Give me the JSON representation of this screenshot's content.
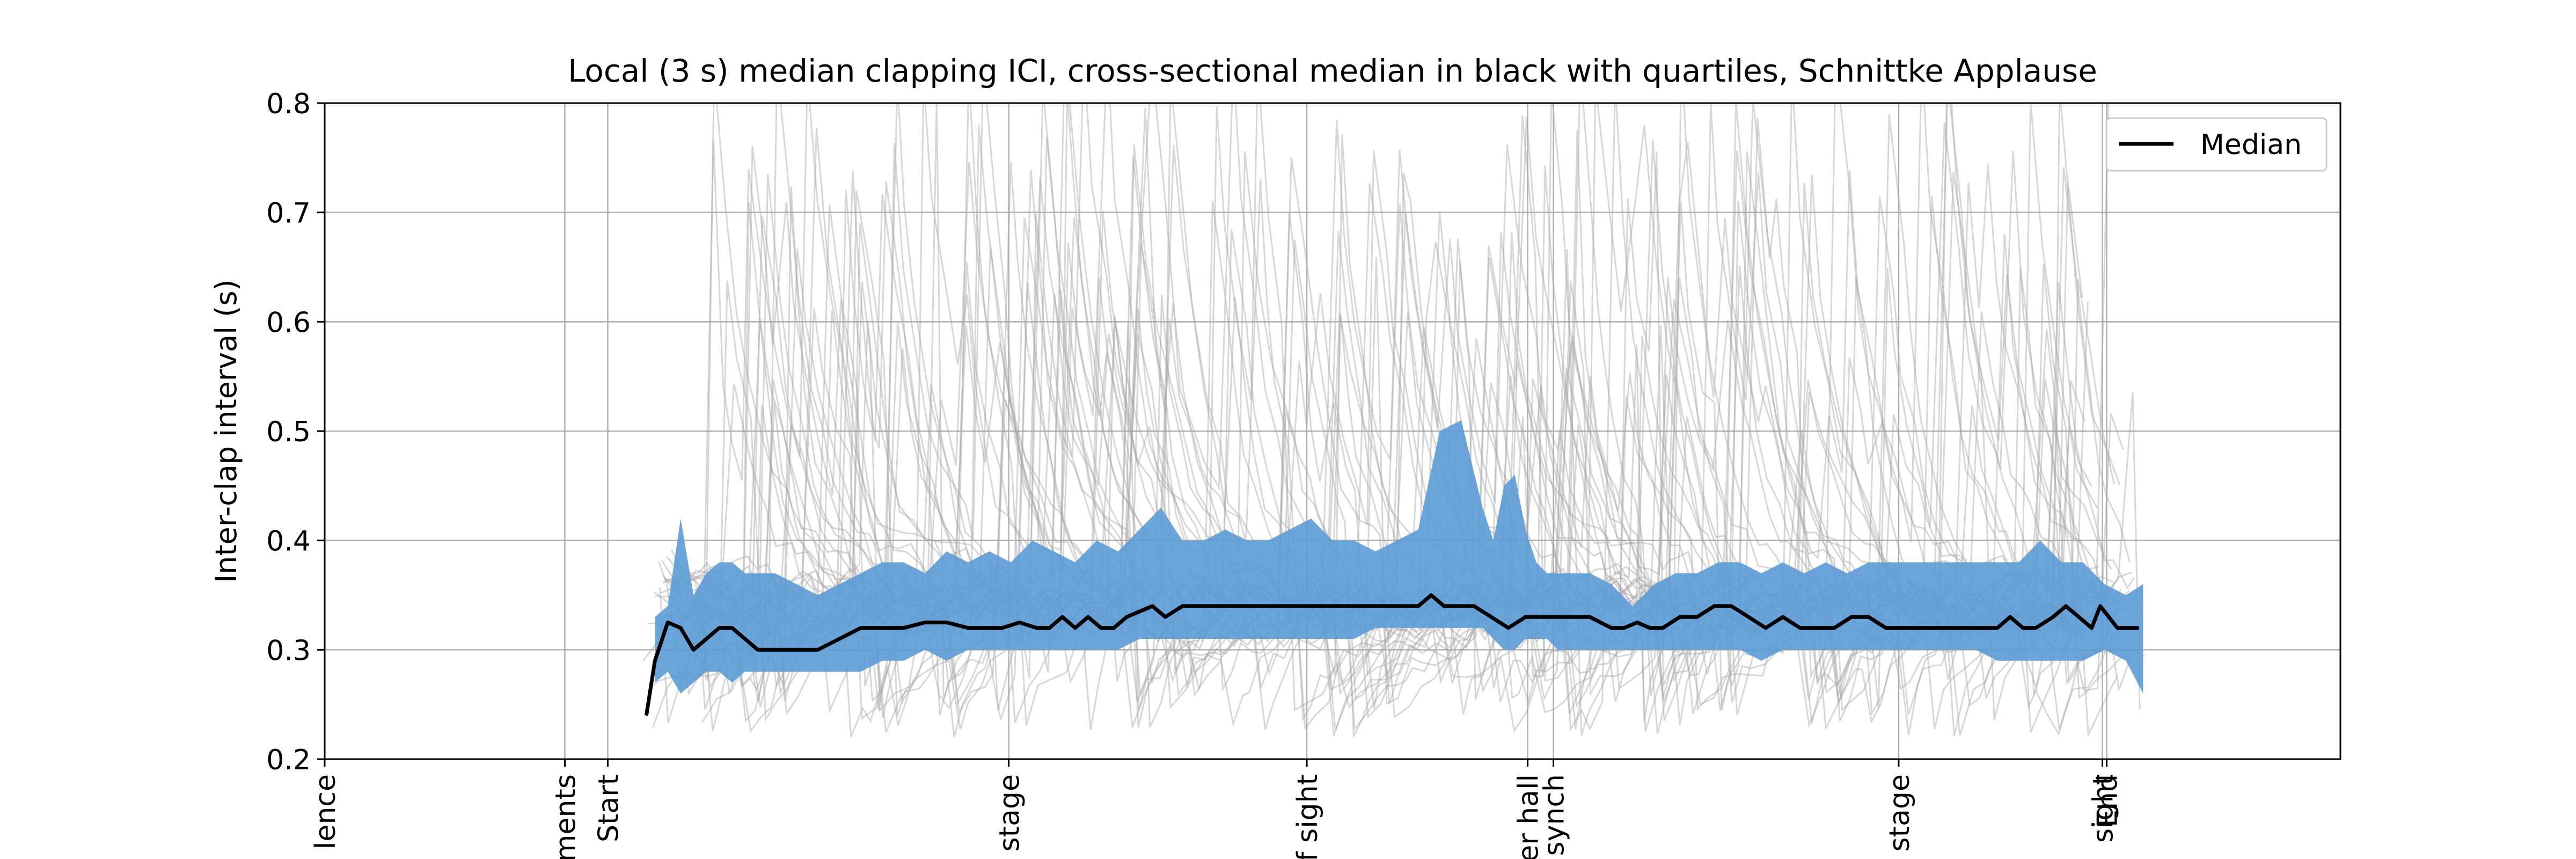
{
  "chart_data": {
    "type": "line",
    "title": "Local (3 s) median clapping ICI, cross-sectional median in black with quartiles, Schnittke Applause",
    "xlabel": "",
    "ylabel": "Inter-clap interval (s)",
    "xlim": [
      0,
      940
    ],
    "ylim": [
      0.2,
      0.8
    ],
    "y_ticks": [
      0.2,
      0.3,
      0.4,
      0.5,
      0.6,
      0.7,
      0.8
    ],
    "y_tick_labels": [
      "0.2",
      "0.3",
      "0.4",
      "0.5",
      "0.6",
      "0.7",
      "0.8"
    ],
    "x_ticks": [
      {
        "x": 0,
        "label": "lence"
      },
      {
        "x": 112,
        "label": "ments"
      },
      {
        "x": 132,
        "label": "Start"
      },
      {
        "x": 319,
        "label": "stage"
      },
      {
        "x": 458,
        "label": "f sight"
      },
      {
        "x": 561,
        "label": "er hall"
      },
      {
        "x": 573,
        "label": "synch"
      },
      {
        "x": 734,
        "label": "stage"
      },
      {
        "x": 829,
        "label": "sight"
      },
      {
        "x": 831,
        "label": "End"
      }
    ],
    "grid": true,
    "legend_position": "top-right",
    "series": [
      {
        "name": "Median",
        "color": "#000000",
        "x": [
          150,
          154,
          160,
          166,
          172,
          178,
          184,
          190,
          196,
          202,
          210,
          220,
          230,
          240,
          250,
          260,
          270,
          280,
          290,
          300,
          308,
          316,
          324,
          332,
          338,
          344,
          350,
          356,
          362,
          368,
          374,
          380,
          386,
          392,
          400,
          410,
          420,
          430,
          440,
          450,
          460,
          470,
          480,
          490,
          500,
          510,
          516,
          522,
          528,
          536,
          544,
          552,
          560,
          566,
          572,
          580,
          590,
          600,
          606,
          612,
          618,
          624,
          632,
          640,
          648,
          656,
          664,
          672,
          680,
          688,
          696,
          704,
          712,
          720,
          728,
          736,
          744,
          752,
          760,
          770,
          780,
          786,
          792,
          798,
          806,
          812,
          818,
          824,
          828,
          832,
          836,
          840,
          846
        ],
        "values": [
          0.24,
          0.29,
          0.325,
          0.32,
          0.3,
          0.31,
          0.32,
          0.32,
          0.31,
          0.3,
          0.3,
          0.3,
          0.3,
          0.31,
          0.32,
          0.32,
          0.32,
          0.325,
          0.325,
          0.32,
          0.32,
          0.32,
          0.325,
          0.32,
          0.32,
          0.33,
          0.32,
          0.33,
          0.32,
          0.32,
          0.33,
          0.335,
          0.34,
          0.33,
          0.34,
          0.34,
          0.34,
          0.34,
          0.34,
          0.34,
          0.34,
          0.34,
          0.34,
          0.34,
          0.34,
          0.34,
          0.35,
          0.34,
          0.34,
          0.34,
          0.33,
          0.32,
          0.33,
          0.33,
          0.33,
          0.33,
          0.33,
          0.32,
          0.32,
          0.325,
          0.32,
          0.32,
          0.33,
          0.33,
          0.34,
          0.34,
          0.33,
          0.32,
          0.33,
          0.32,
          0.32,
          0.32,
          0.33,
          0.33,
          0.32,
          0.32,
          0.32,
          0.32,
          0.32,
          0.32,
          0.32,
          0.33,
          0.32,
          0.32,
          0.33,
          0.34,
          0.33,
          0.32,
          0.34,
          0.33,
          0.32,
          0.32,
          0.32
        ]
      }
    ],
    "quartile_band": {
      "color": "#5b9bd5",
      "x": [
        154,
        160,
        166,
        172,
        178,
        184,
        190,
        196,
        202,
        210,
        220,
        230,
        240,
        250,
        260,
        270,
        280,
        290,
        300,
        310,
        320,
        330,
        340,
        350,
        360,
        370,
        380,
        390,
        400,
        410,
        420,
        430,
        440,
        450,
        460,
        470,
        480,
        490,
        500,
        510,
        520,
        530,
        540,
        545,
        550,
        555,
        560,
        565,
        570,
        575,
        580,
        590,
        600,
        610,
        620,
        630,
        640,
        650,
        660,
        670,
        680,
        690,
        700,
        710,
        720,
        730,
        740,
        750,
        760,
        770,
        780,
        790,
        800,
        810,
        820,
        830,
        840,
        848
      ],
      "upper": [
        0.33,
        0.34,
        0.42,
        0.35,
        0.37,
        0.38,
        0.38,
        0.37,
        0.37,
        0.37,
        0.36,
        0.35,
        0.36,
        0.37,
        0.38,
        0.38,
        0.37,
        0.39,
        0.38,
        0.39,
        0.38,
        0.4,
        0.39,
        0.38,
        0.4,
        0.39,
        0.41,
        0.43,
        0.4,
        0.4,
        0.41,
        0.4,
        0.4,
        0.41,
        0.42,
        0.4,
        0.4,
        0.39,
        0.4,
        0.41,
        0.5,
        0.51,
        0.43,
        0.4,
        0.45,
        0.46,
        0.41,
        0.38,
        0.37,
        0.37,
        0.37,
        0.37,
        0.36,
        0.34,
        0.36,
        0.37,
        0.37,
        0.38,
        0.38,
        0.37,
        0.38,
        0.37,
        0.38,
        0.37,
        0.38,
        0.38,
        0.38,
        0.38,
        0.38,
        0.38,
        0.38,
        0.38,
        0.4,
        0.38,
        0.38,
        0.36,
        0.35,
        0.36
      ],
      "lower": [
        0.27,
        0.28,
        0.26,
        0.27,
        0.28,
        0.28,
        0.27,
        0.28,
        0.28,
        0.28,
        0.28,
        0.28,
        0.28,
        0.28,
        0.29,
        0.29,
        0.3,
        0.29,
        0.3,
        0.3,
        0.3,
        0.3,
        0.3,
        0.3,
        0.3,
        0.3,
        0.31,
        0.31,
        0.31,
        0.31,
        0.31,
        0.31,
        0.31,
        0.31,
        0.31,
        0.31,
        0.31,
        0.32,
        0.32,
        0.32,
        0.32,
        0.32,
        0.32,
        0.31,
        0.3,
        0.3,
        0.31,
        0.31,
        0.31,
        0.3,
        0.3,
        0.3,
        0.3,
        0.3,
        0.3,
        0.3,
        0.3,
        0.3,
        0.3,
        0.29,
        0.3,
        0.3,
        0.3,
        0.3,
        0.3,
        0.3,
        0.3,
        0.3,
        0.3,
        0.3,
        0.29,
        0.29,
        0.29,
        0.29,
        0.29,
        0.3,
        0.29,
        0.26
      ]
    }
  }
}
